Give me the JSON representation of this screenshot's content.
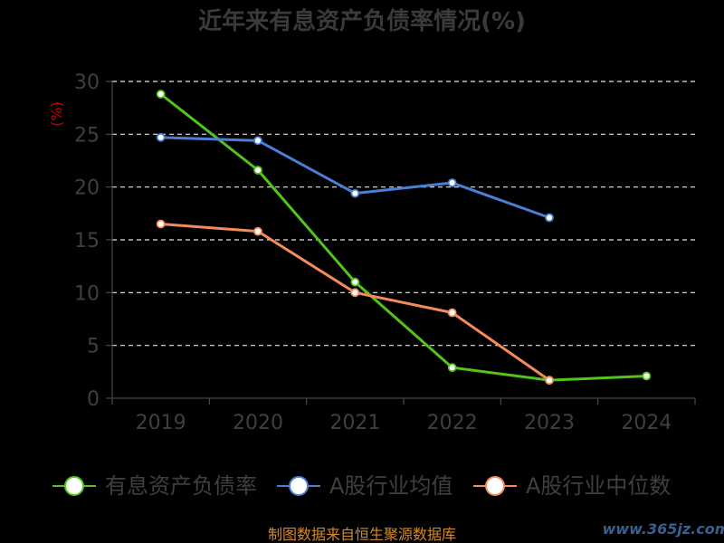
{
  "chart_data": {
    "type": "line",
    "title": "近年来有息资产负债率情况(%)",
    "ylabel": "(%)",
    "x": [
      "2019",
      "2020",
      "2021",
      "2022",
      "2023",
      "2024"
    ],
    "ylim": [
      0,
      30
    ],
    "yticks": [
      "0",
      "5",
      "10",
      "15",
      "20",
      "25",
      "30"
    ],
    "grid": true,
    "legend_position": "bottom",
    "series": [
      {
        "name": "有息资产负债率",
        "color": "#52c41a",
        "values": [
          28.8,
          21.6,
          11.0,
          2.9,
          1.7,
          2.1
        ]
      },
      {
        "name": "A股行业均值",
        "color": "#4a7fd6",
        "values": [
          24.7,
          24.4,
          19.4,
          20.4,
          17.1,
          null
        ]
      },
      {
        "name": "A股行业中位数",
        "color": "#f58a5b",
        "values": [
          16.5,
          15.8,
          10.0,
          8.1,
          1.7,
          null
        ]
      }
    ]
  },
  "footer": {
    "source": "制图数据来自恒生聚源数据库",
    "watermark": "www.365jz.com"
  }
}
